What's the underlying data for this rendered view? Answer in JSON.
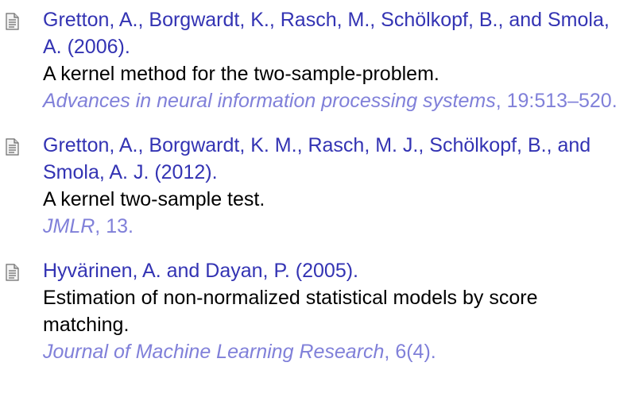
{
  "entries": [
    {
      "authors": "Gretton, A., Borgwardt, K., Rasch, M., Schölkopf, B., and Smola, A. (2006).",
      "title": "A kernel method for the two-sample-problem.",
      "venue": "Advances in neural information processing systems",
      "details": ", 19:513–520."
    },
    {
      "authors": "Gretton, A., Borgwardt, K. M., Rasch, M. J., Schölkopf, B., and Smola, A. J. (2012).",
      "title": "A kernel two-sample test.",
      "venue": "JMLR",
      "details": ", 13."
    },
    {
      "authors": "Hyvärinen, A. and Dayan, P. (2005).",
      "title": "Estimation of non-normalized statistical models by score matching.",
      "venue": "Journal of Machine Learning Research",
      "details": ", 6(4)."
    }
  ]
}
